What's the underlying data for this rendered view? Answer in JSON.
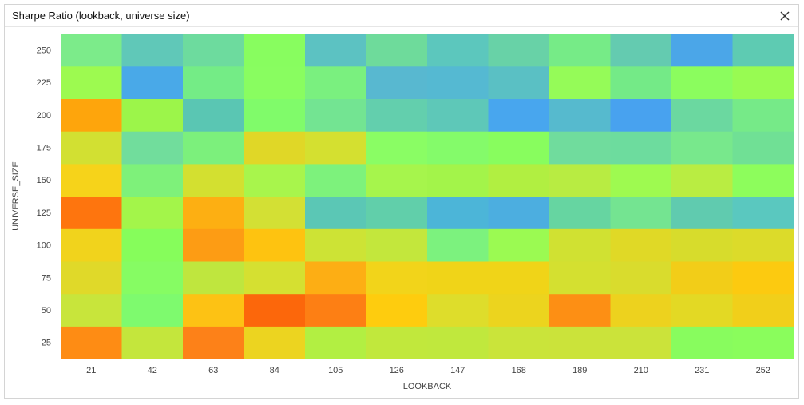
{
  "window": {
    "title": "Sharpe Ratio (lookback, universe  size)",
    "close_icon": "close-icon"
  },
  "chart_data": {
    "type": "heatmap",
    "title": "Sharpe Ratio (lookback, universe  size)",
    "xlabel": "LOOKBACK",
    "ylabel": "UNIVERSE_SIZE",
    "x": [
      21,
      42,
      63,
      84,
      105,
      126,
      147,
      168,
      189,
      210,
      231,
      252
    ],
    "y": [
      25,
      50,
      75,
      100,
      125,
      150,
      175,
      200,
      225,
      250
    ],
    "x_tick_labels": [
      "21",
      "42",
      "63",
      "84",
      "105",
      "126",
      "147",
      "168",
      "189",
      "210",
      "231",
      "252"
    ],
    "y_tick_labels": [
      "25",
      "50",
      "75",
      "100",
      "125",
      "150",
      "175",
      "200",
      "225",
      "250"
    ],
    "cell_colors": [
      [
        "#fe8c14",
        "#c4e63c",
        "#fd8118",
        "#ecd420",
        "#b2ef42",
        "#c1e83c",
        "#c0e83d",
        "#cae43a",
        "#cbe33a",
        "#cbe33a",
        "#88fc5e",
        "#8afd5c"
      ],
      [
        "#c8e53b",
        "#7efa6e",
        "#fdc214",
        "#fc670b",
        "#fd7f14",
        "#fecc0e",
        "#dedd2b",
        "#ecd41e",
        "#fd8f14",
        "#edd21e",
        "#e3d924",
        "#f1cf1a"
      ],
      [
        "#e0d929",
        "#86fc63",
        "#bfe63e",
        "#d5e031",
        "#fdae14",
        "#f2d41a",
        "#f0d418",
        "#f0d418",
        "#d4e030",
        "#d9dc2d",
        "#f2cd18",
        "#fcca10"
      ],
      [
        "#f1d31c",
        "#86fd5b",
        "#fd9c14",
        "#fec310",
        "#cde335",
        "#c3e73c",
        "#7cf27e",
        "#9bfa52",
        "#d0e132",
        "#e0d926",
        "#d7dc2c",
        "#dcdb2a"
      ],
      [
        "#fe750e",
        "#a3f54a",
        "#fdaf12",
        "#d3e034",
        "#5bc7b5",
        "#61cfaa",
        "#4cb5d8",
        "#4caee0",
        "#66d5a1",
        "#74e491",
        "#60cbaf",
        "#5ac8bf"
      ],
      [
        "#f6d31a",
        "#7ef17a",
        "#d3e030",
        "#a8f54c",
        "#7df27c",
        "#a6f54c",
        "#a3f44a",
        "#b1ef41",
        "#b8ec42",
        "#9efa50",
        "#b9ed42",
        "#8dfd5c"
      ],
      [
        "#d2e032",
        "#71dd9c",
        "#7cf07c",
        "#e0d727",
        "#d4e030",
        "#8afd64",
        "#84fb6a",
        "#88fd5e",
        "#70dc9d",
        "#6ddc9e",
        "#78e88c",
        "#70e095"
      ],
      [
        "#fea50c",
        "#9cf54a",
        "#5ac6b3",
        "#80fb6a",
        "#73e492",
        "#63cfad",
        "#5ec8b8",
        "#48a6ee",
        "#56bace",
        "#48a2ef",
        "#6bd8a0",
        "#76ea88"
      ],
      [
        "#9dfa50",
        "#49a9e8",
        "#74ec86",
        "#89fd60",
        "#7af07f",
        "#58b8d0",
        "#55b9d2",
        "#5ac0c4",
        "#95fb58",
        "#74ea87",
        "#8bfd5e",
        "#98fb52"
      ],
      [
        "#7ceb8a",
        "#60c8b8",
        "#6ddb9e",
        "#88fd5f",
        "#5cc2c2",
        "#6edb9b",
        "#5cc7bd",
        "#68d2a7",
        "#76eb87",
        "#64cbb0",
        "#4ba6e8",
        "#5ecbb2"
      ]
    ],
    "xlim": [
      10.5,
      262.5
    ],
    "ylim": [
      12.5,
      262.5
    ],
    "grid": false,
    "legend": "none"
  }
}
